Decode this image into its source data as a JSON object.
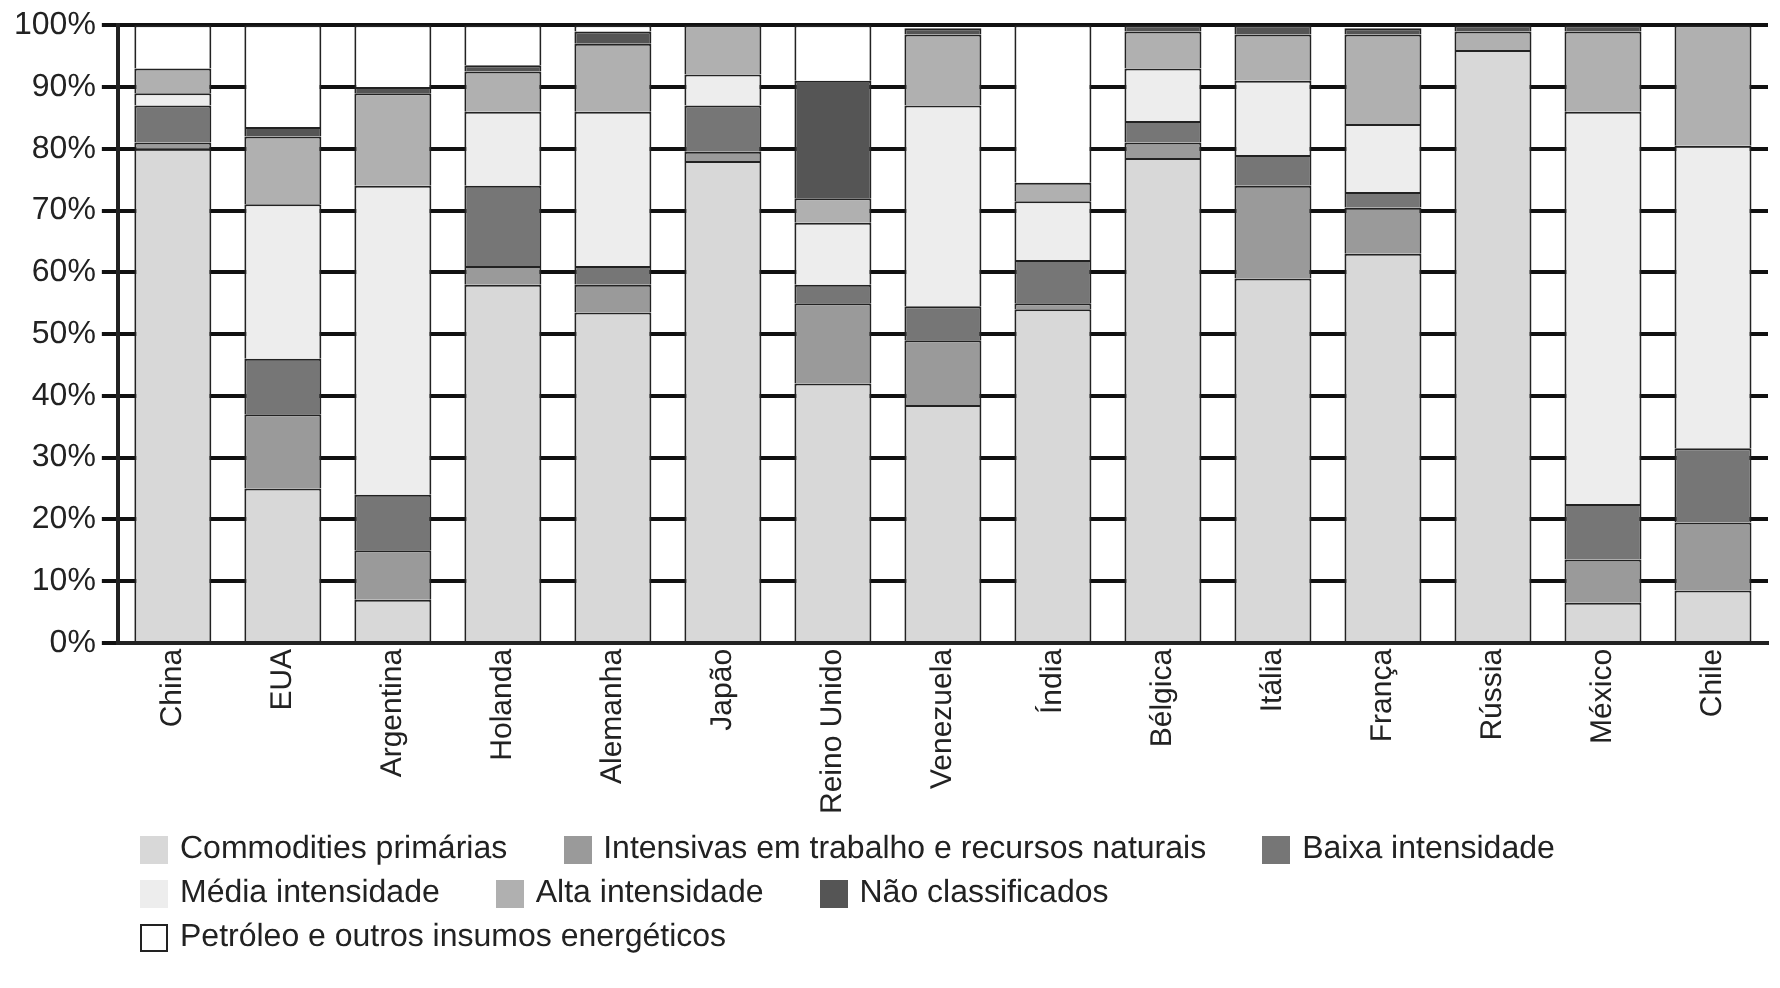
{
  "chart_data": {
    "type": "bar",
    "stacked": true,
    "categories": [
      "China",
      "EUA",
      "Argentina",
      "Holanda",
      "Alemanha",
      "Japão",
      "Reino Unido",
      "Venezuela",
      "Índia",
      "Bélgica",
      "Itália",
      "França",
      "Rússia",
      "México",
      "Chile"
    ],
    "series": [
      {
        "name": "Commodities primárias",
        "color": "#d8d8d8",
        "values": [
          80,
          25,
          7,
          58,
          53.5,
          78,
          42,
          38.5,
          54,
          78.5,
          59,
          63,
          96,
          6.5,
          8.5
        ]
      },
      {
        "name": "Intensivas em trabalho e recursos naturais",
        "color": "#9a9a9a",
        "values": [
          1,
          12,
          8,
          3,
          4.5,
          1.5,
          13,
          10.5,
          1,
          2.5,
          15,
          7.5,
          0,
          7,
          11
        ]
      },
      {
        "name": "Baixa intensidade",
        "color": "#767676",
        "values": [
          6,
          9,
          9,
          13,
          3,
          7.5,
          3,
          5.5,
          7,
          3.5,
          5,
          2.5,
          0,
          9,
          12
        ]
      },
      {
        "name": "Média intensidade",
        "color": "#ededed",
        "values": [
          2,
          25,
          50,
          12,
          25,
          5,
          10,
          32.5,
          9.5,
          8.5,
          12,
          11,
          0,
          63.5,
          49
        ]
      },
      {
        "name": "Alta intensidade",
        "color": "#b0b0b0",
        "values": [
          4,
          11,
          15,
          6.5,
          11,
          8,
          4,
          11.5,
          3,
          6,
          7.5,
          14.5,
          3,
          13,
          19.5
        ]
      },
      {
        "name": "Não classificados",
        "color": "#555555",
        "values": [
          0,
          1.5,
          1,
          1,
          2,
          0,
          19,
          1,
          0,
          1,
          1.5,
          1,
          1,
          1,
          0
        ]
      },
      {
        "name": "Petróleo e outros insumos energéticos",
        "color": "#ffffff",
        "values": [
          7,
          16.5,
          10,
          6.5,
          1,
          0,
          9,
          0,
          25.5,
          0,
          0,
          0,
          0,
          0,
          0
        ]
      }
    ],
    "ylim": [
      0,
      100
    ],
    "yticks": [
      {
        "value": 0,
        "label": "0%"
      },
      {
        "value": 10,
        "label": "10%"
      },
      {
        "value": 20,
        "label": "20%"
      },
      {
        "value": 30,
        "label": "30%"
      },
      {
        "value": 40,
        "label": "40%"
      },
      {
        "value": 50,
        "label": "50%"
      },
      {
        "value": 60,
        "label": "60%"
      },
      {
        "value": 70,
        "label": "70%"
      },
      {
        "value": 80,
        "label": "80%"
      },
      {
        "value": 90,
        "label": "90%"
      },
      {
        "value": 100,
        "label": "100%"
      }
    ],
    "grid": "y",
    "legend": "bottom"
  }
}
